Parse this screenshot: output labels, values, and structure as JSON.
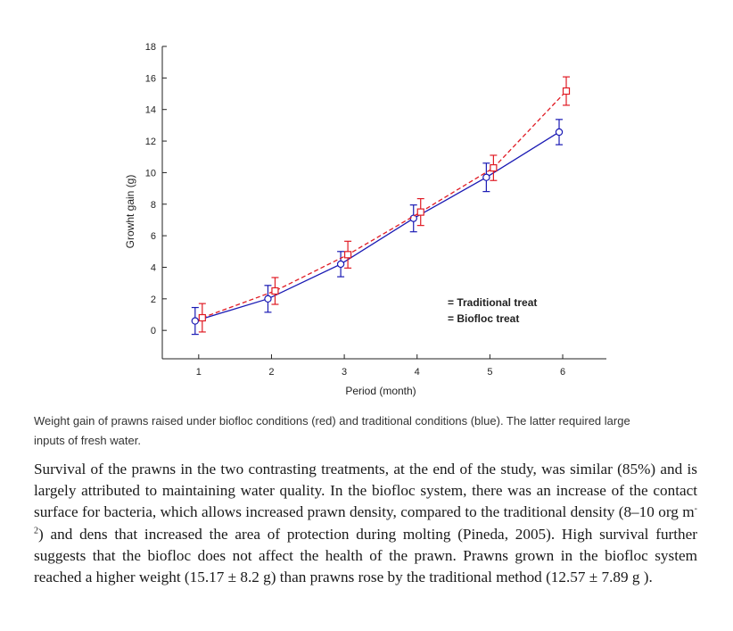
{
  "chart_data": {
    "type": "line",
    "title": "",
    "xlabel": "Period (month)",
    "ylabel": "Growht gain (g)",
    "x": [
      1,
      2,
      3,
      4,
      5,
      6
    ],
    "xticks": [
      "1",
      "2",
      "3",
      "4",
      "5",
      "6"
    ],
    "yticks": [
      "0",
      "2",
      "4",
      "6",
      "8",
      "10",
      "12",
      "14",
      "16",
      "18"
    ],
    "xlim": [
      0.5,
      6.6
    ],
    "ylim": [
      -1.8,
      18
    ],
    "grid": false,
    "legend_position": "lower-right inside",
    "series": [
      {
        "name": "Traditional treat",
        "color": "#1a1ab4",
        "line_style": "solid",
        "marker": "circle",
        "values": [
          0.6,
          2.0,
          4.2,
          7.1,
          9.7,
          12.57
        ],
        "errors": [
          0.85,
          0.85,
          0.8,
          0.85,
          0.9,
          0.8
        ]
      },
      {
        "name": "Biofloc treat",
        "color": "#e01b24",
        "line_style": "dashed",
        "marker": "square",
        "values": [
          0.8,
          2.5,
          4.8,
          7.5,
          10.3,
          15.17
        ],
        "errors": [
          0.9,
          0.85,
          0.85,
          0.85,
          0.8,
          0.9
        ]
      }
    ]
  },
  "legend": {
    "items": [
      "= Traditional treat",
      "= Biofloc treat"
    ]
  },
  "caption": "Weight gain of prawns raised under biofloc conditions (red) and traditional conditions (blue). The latter re­quired large inputs of fresh water.",
  "body": {
    "part1": "Survival of the prawns in the two contrasting treatments, at the end of the study, was similar (85%) and is largely attributed to maintaining water quality. In the biofloc system, there was an increase of the contact surface for bacteria, which allows increased prawn density, com­pared to the traditional density (8–10 org m",
    "superscript": "-2",
    "part2": ") and dens that increased the area of protection during molting (Pineda, 2005). High survival further suggests that the biofloc does not affect the health of the prawn. Prawns grown in the biofloc system reached a higher weight (15.17 ± 8.2 g) than prawns rose by the traditional method (12.57 ± 7.89 g )."
  }
}
